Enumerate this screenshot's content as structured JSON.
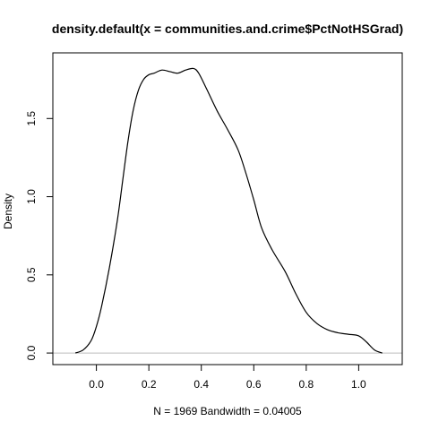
{
  "chart_data": {
    "type": "line",
    "title": "density.default(x = communities.and.crime$PctNotHSGrad)",
    "xlabel": "N = 1969   Bandwidth = 0.04005",
    "ylabel": "Density",
    "xlim": [
      -0.166,
      1.166
    ],
    "ylim": [
      -0.074,
      1.92
    ],
    "x_ticks": [
      "0.0",
      "0.2",
      "0.4",
      "0.6",
      "0.8",
      "1.0"
    ],
    "x_tick_values": [
      0.0,
      0.2,
      0.4,
      0.6,
      0.8,
      1.0
    ],
    "y_ticks": [
      "0.0",
      "0.5",
      "1.0",
      "1.5"
    ],
    "y_tick_values": [
      0.0,
      0.5,
      1.0,
      1.5
    ],
    "zero_line": true,
    "grid": false,
    "series": [
      {
        "color": "#000000",
        "zero_line_color": "#bebebe",
        "x": [
          -0.08,
          -0.05,
          -0.02,
          0.0,
          0.02,
          0.05,
          0.08,
          0.1,
          0.12,
          0.14,
          0.16,
          0.18,
          0.2,
          0.22,
          0.25,
          0.28,
          0.31,
          0.34,
          0.37,
          0.39,
          0.42,
          0.46,
          0.5,
          0.54,
          0.57,
          0.6,
          0.63,
          0.67,
          0.72,
          0.76,
          0.8,
          0.84,
          0.88,
          0.92,
          0.96,
          1.0,
          1.03,
          1.06,
          1.09
        ],
        "y": [
          0.0,
          0.02,
          0.08,
          0.17,
          0.3,
          0.55,
          0.85,
          1.1,
          1.35,
          1.55,
          1.68,
          1.75,
          1.78,
          1.79,
          1.81,
          1.8,
          1.79,
          1.81,
          1.82,
          1.79,
          1.69,
          1.55,
          1.43,
          1.3,
          1.15,
          0.98,
          0.8,
          0.66,
          0.52,
          0.38,
          0.26,
          0.19,
          0.15,
          0.13,
          0.12,
          0.11,
          0.07,
          0.02,
          0.0
        ]
      }
    ]
  }
}
